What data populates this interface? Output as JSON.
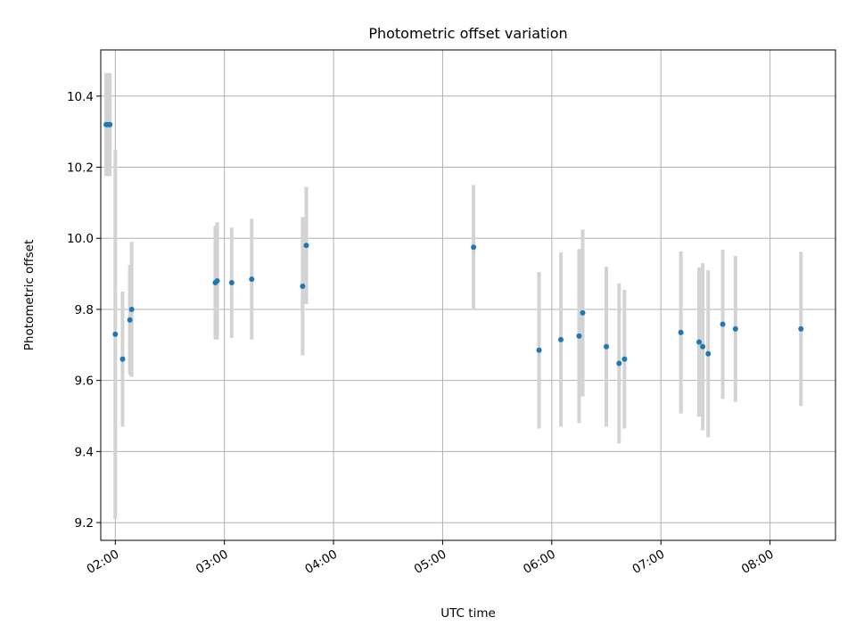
{
  "chart_data": {
    "type": "scatter",
    "title": "Photometric offset variation",
    "xlabel": "UTC time",
    "ylabel": "Photometric offset",
    "x_tick_labels": [
      "02:00",
      "03:00",
      "04:00",
      "05:00",
      "06:00",
      "07:00",
      "08:00"
    ],
    "y_tick_labels": [
      "9.2",
      "9.4",
      "9.6",
      "9.8",
      "10.0",
      "10.2",
      "10.4"
    ],
    "xlim": [
      "01:52",
      "08:36"
    ],
    "ylim": [
      9.15,
      10.53
    ],
    "grid": true,
    "colors": {
      "marker": "#1f77b4",
      "errorbar": "#d3d3d3",
      "grid": "#b0b0b0"
    },
    "points": [
      {
        "x": "01:55",
        "y": 10.32,
        "err": 0.145
      },
      {
        "x": "01:56",
        "y": 10.32,
        "err": 0.145
      },
      {
        "x": "01:57",
        "y": 10.32,
        "err": 0.145
      },
      {
        "x": "02:00",
        "y": 9.73,
        "err": 0.52
      },
      {
        "x": "02:04",
        "y": 9.66,
        "err": 0.19
      },
      {
        "x": "02:08",
        "y": 9.77,
        "err": 0.155
      },
      {
        "x": "02:09",
        "y": 9.8,
        "err": 0.19
      },
      {
        "x": "02:55",
        "y": 9.875,
        "err": 0.16
      },
      {
        "x": "02:56",
        "y": 9.88,
        "err": 0.165
      },
      {
        "x": "03:04",
        "y": 9.875,
        "err": 0.155
      },
      {
        "x": "03:15",
        "y": 9.885,
        "err": 0.17
      },
      {
        "x": "03:43",
        "y": 9.865,
        "err": 0.195
      },
      {
        "x": "03:45",
        "y": 9.98,
        "err": 0.165
      },
      {
        "x": "05:17",
        "y": 9.975,
        "err": 0.175
      },
      {
        "x": "05:53",
        "y": 9.685,
        "err": 0.22
      },
      {
        "x": "06:05",
        "y": 9.715,
        "err": 0.245
      },
      {
        "x": "06:15",
        "y": 9.725,
        "err": 0.245
      },
      {
        "x": "06:17",
        "y": 9.79,
        "err": 0.235
      },
      {
        "x": "06:30",
        "y": 9.695,
        "err": 0.225
      },
      {
        "x": "06:37",
        "y": 9.648,
        "err": 0.225
      },
      {
        "x": "06:40",
        "y": 9.66,
        "err": 0.195
      },
      {
        "x": "07:11",
        "y": 9.735,
        "err": 0.228
      },
      {
        "x": "07:21",
        "y": 9.708,
        "err": 0.21
      },
      {
        "x": "07:23",
        "y": 9.695,
        "err": 0.235
      },
      {
        "x": "07:26",
        "y": 9.675,
        "err": 0.235
      },
      {
        "x": "07:34",
        "y": 9.758,
        "err": 0.21
      },
      {
        "x": "07:41",
        "y": 9.745,
        "err": 0.205
      },
      {
        "x": "08:17",
        "y": 9.745,
        "err": 0.217
      }
    ]
  }
}
